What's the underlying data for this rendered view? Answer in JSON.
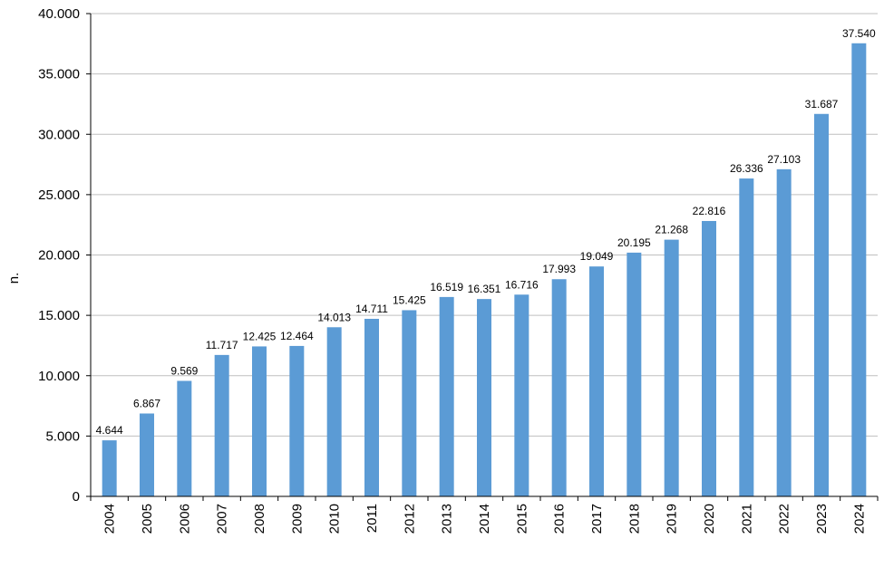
{
  "chart_data": {
    "type": "bar",
    "categories": [
      "2004",
      "2005",
      "2006",
      "2007",
      "2008",
      "2009",
      "2010",
      "2011",
      "2012",
      "2013",
      "2014",
      "2015",
      "2016",
      "2017",
      "2018",
      "2019",
      "2020",
      "2021",
      "2022",
      "2023",
      "2024"
    ],
    "values": [
      4644,
      6867,
      9569,
      11717,
      12425,
      12464,
      14013,
      14711,
      15425,
      16519,
      16351,
      16716,
      17993,
      19049,
      20195,
      21268,
      22816,
      26336,
      27103,
      31687,
      37540
    ],
    "data_labels": [
      "4.644",
      "6.867",
      "9.569",
      "11.717",
      "12.425",
      "12.464",
      "14.013",
      "14.711",
      "15.425",
      "16.519",
      "16.351",
      "16.716",
      "17.993",
      "19.049",
      "20.195",
      "21.268",
      "22.816",
      "26.336",
      "27.103",
      "31.687",
      "37.540"
    ],
    "y_ticks": [
      0,
      5000,
      10000,
      15000,
      20000,
      25000,
      30000,
      35000,
      40000
    ],
    "y_tick_labels": [
      "0",
      "5.000",
      "10.000",
      "15.000",
      "20.000",
      "25.000",
      "30.000",
      "35.000",
      "40.000"
    ],
    "ylim": [
      0,
      40000
    ],
    "title": "",
    "xlabel": "",
    "ylabel": "n.",
    "grid": true,
    "bar_color": "#5B9BD5",
    "grid_color": "#BFBFBF",
    "axis_color": "#000000"
  }
}
